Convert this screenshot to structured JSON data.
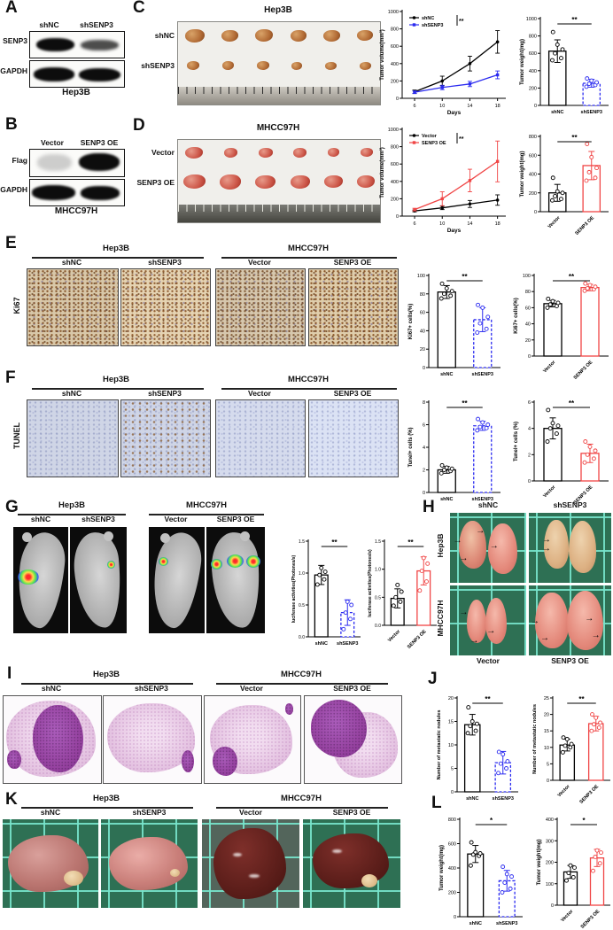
{
  "icons": {
    "arrow_right": "→"
  },
  "figure": {
    "panels": {
      "A": {
        "letter": "A",
        "lanes": [
          "shNC",
          "shSENP3"
        ],
        "blot_labels": [
          "SENP3",
          "GAPDH"
        ],
        "cell_line": "Hep3B"
      },
      "B": {
        "letter": "B",
        "lanes": [
          "Vector",
          "SENP3 OE"
        ],
        "blot_labels": [
          "Flag",
          "GAPDH"
        ],
        "cell_line": "MHCC97H"
      },
      "C": {
        "letter": "C",
        "title": "Hep3B",
        "rows": [
          "shNC",
          "shSENP3"
        ]
      },
      "D": {
        "letter": "D",
        "title": "MHCC97H",
        "rows": [
          "Vector",
          "SENP3 OE"
        ]
      },
      "E": {
        "letter": "E",
        "marker": "Ki67",
        "groups": [
          {
            "cell_line": "Hep3B",
            "conditions": [
              "shNC",
              "shSENP3"
            ]
          },
          {
            "cell_line": "MHCC97H",
            "conditions": [
              "Vector",
              "SENP3 OE"
            ]
          }
        ]
      },
      "F": {
        "letter": "F",
        "marker": "TUNEL",
        "groups": [
          {
            "cell_line": "Hep3B",
            "conditions": [
              "shNC",
              "shSENP3"
            ]
          },
          {
            "cell_line": "MHCC97H",
            "conditions": [
              "Vector",
              "SENP3 OE"
            ]
          }
        ]
      },
      "G": {
        "letter": "G",
        "groups": [
          {
            "cell_line": "Hep3B",
            "conditions": [
              "shNC",
              "shSENP3"
            ]
          },
          {
            "cell_line": "MHCC97H",
            "conditions": [
              "Vector",
              "SENP3 OE"
            ]
          }
        ]
      },
      "H": {
        "letter": "H",
        "col_labels": [
          "shNC",
          "shSENP3"
        ],
        "row_labels": [
          "Hep3B",
          "MHCC97H"
        ],
        "bottom_labels": [
          "Vector",
          "SENP3 OE"
        ]
      },
      "I": {
        "letter": "I",
        "groups": [
          {
            "cell_line": "Hep3B",
            "conditions": [
              "shNC",
              "shSENP3"
            ]
          },
          {
            "cell_line": "MHCC97H",
            "conditions": [
              "Vector",
              "SENP3 OE"
            ]
          }
        ]
      },
      "J": {
        "letter": "J"
      },
      "K": {
        "letter": "K",
        "groups": [
          {
            "cell_line": "Hep3B",
            "conditions": [
              "shNC",
              "shSENP3"
            ]
          },
          {
            "cell_line": "MHCC97H",
            "conditions": [
              "Vector",
              "SENP3 OE"
            ]
          }
        ]
      },
      "L": {
        "letter": "L"
      }
    }
  },
  "chart_data": [
    {
      "id": "C-volume",
      "type": "line",
      "panel": "C",
      "x": [
        6,
        10,
        14,
        18
      ],
      "xlabel": "Days",
      "ylabel": "Tumor volume(mm³)",
      "ylim": [
        0,
        1000
      ],
      "yticks": [
        0,
        200,
        400,
        600,
        800,
        1000
      ],
      "series": [
        {
          "name": "shNC",
          "color": "#000000",
          "values": [
            75,
            200,
            400,
            650
          ],
          "errors": [
            20,
            55,
            85,
            130
          ]
        },
        {
          "name": "shSENP3",
          "color": "#2b2bf0",
          "values": [
            70,
            125,
            165,
            270
          ],
          "errors": [
            15,
            25,
            30,
            45
          ]
        }
      ],
      "sig": "**"
    },
    {
      "id": "C-weight",
      "type": "bar",
      "panel": "C",
      "categories": [
        "shNC",
        "shSENP3"
      ],
      "colors": [
        "#000000",
        "#2b2bf0"
      ],
      "dashed": [
        false,
        true
      ],
      "values": [
        625,
        255
      ],
      "errors": [
        130,
        45
      ],
      "points": [
        [
          520,
          545,
          600,
          645,
          700,
          845
        ],
        [
          215,
          235,
          250,
          265,
          285,
          310
        ]
      ],
      "ylabel": "Tumor weight(mg)",
      "ylim": [
        0,
        1000
      ],
      "yticks": [
        0,
        200,
        400,
        600,
        800,
        1000
      ],
      "sig": "**",
      "rotate_labels": false
    },
    {
      "id": "D-volume",
      "type": "line",
      "panel": "D",
      "x": [
        6,
        10,
        14,
        18
      ],
      "xlabel": "Days",
      "ylabel": "Tumor volume(mm³)",
      "ylim": [
        0,
        1000
      ],
      "yticks": [
        0,
        200,
        400,
        600,
        800,
        1000
      ],
      "series": [
        {
          "name": "Vector",
          "color": "#000000",
          "values": [
            60,
            95,
            140,
            185
          ],
          "errors": [
            10,
            20,
            40,
            60
          ]
        },
        {
          "name": "SENP3 OE",
          "color": "#f04545",
          "values": [
            75,
            200,
            410,
            630
          ],
          "errors": [
            15,
            80,
            130,
            235
          ]
        }
      ],
      "sig": "**"
    },
    {
      "id": "D-weight",
      "type": "bar",
      "panel": "D",
      "categories": [
        "Vector",
        "SENP3 OE"
      ],
      "colors": [
        "#000000",
        "#f04545"
      ],
      "values": [
        200,
        490
      ],
      "errors": [
        90,
        150
      ],
      "points": [
        [
          120,
          135,
          165,
          200,
          215,
          360
        ],
        [
          330,
          360,
          420,
          465,
          580,
          720
        ]
      ],
      "ylabel": "Tumor weight(mg)",
      "ylim": [
        0,
        800
      ],
      "yticks": [
        0,
        200,
        400,
        600,
        800
      ],
      "sig": "**",
      "rotate_labels": true
    },
    {
      "id": "E-hep",
      "type": "bar",
      "panel": "E",
      "categories": [
        "shNC",
        "shSENP3"
      ],
      "colors": [
        "#000000",
        "#2b2bf0"
      ],
      "dashed": [
        false,
        true
      ],
      "values": [
        82,
        52
      ],
      "errors": [
        7,
        13
      ],
      "points": [
        [
          75,
          78,
          80,
          83,
          86,
          91
        ],
        [
          38,
          42,
          48,
          55,
          65,
          68
        ]
      ],
      "ylabel": "Ki67+ cells(%)",
      "ylim": [
        0,
        100
      ],
      "yticks": [
        0,
        20,
        40,
        60,
        80,
        100
      ],
      "sig": "**",
      "rotate_labels": false
    },
    {
      "id": "E-mhcc",
      "type": "bar",
      "panel": "E",
      "categories": [
        "Vector",
        "SENP3 OE"
      ],
      "colors": [
        "#000000",
        "#f04545"
      ],
      "values": [
        65,
        85
      ],
      "errors": [
        4,
        4
      ],
      "points": [
        [
          60,
          62,
          64,
          66,
          68,
          71
        ],
        [
          81,
          83,
          84,
          86,
          88,
          90
        ]
      ],
      "ylabel": "Ki67+ cells(%)",
      "ylim": [
        0,
        100
      ],
      "yticks": [
        0,
        20,
        40,
        60,
        80,
        100
      ],
      "sig": "**",
      "rotate_labels": true
    },
    {
      "id": "F-hep",
      "type": "bar",
      "panel": "F",
      "categories": [
        "shNC",
        "shSENP3"
      ],
      "colors": [
        "#000000",
        "#2b2bf0"
      ],
      "dashed": [
        false,
        true
      ],
      "values": [
        2.0,
        5.9
      ],
      "errors": [
        0.3,
        0.4
      ],
      "points": [
        [
          1.7,
          1.9,
          2.0,
          2.1,
          2.2,
          2.4
        ],
        [
          5.5,
          5.7,
          5.8,
          6.0,
          6.2,
          6.5
        ]
      ],
      "ylabel": "Tunel+ cells (%)",
      "ylim": [
        0,
        8
      ],
      "yticks": [
        0,
        2,
        4,
        6,
        8
      ],
      "sig": "**",
      "rotate_labels": false
    },
    {
      "id": "F-mhcc",
      "type": "bar",
      "panel": "F",
      "categories": [
        "Vector",
        "SENP3 OE"
      ],
      "colors": [
        "#000000",
        "#f04545"
      ],
      "values": [
        4.0,
        2.1
      ],
      "errors": [
        0.8,
        0.7
      ],
      "points": [
        [
          3.0,
          3.6,
          4.0,
          4.2,
          4.4,
          5.4
        ],
        [
          1.4,
          1.7,
          2.0,
          2.3,
          2.6,
          3.0
        ]
      ],
      "ylabel": "Tunel+ cells (%)",
      "ylim": [
        0,
        6
      ],
      "yticks": [
        0,
        2,
        4,
        6
      ],
      "sig": "**",
      "rotate_labels": true
    },
    {
      "id": "G-hep",
      "type": "bar",
      "panel": "G",
      "categories": [
        "shNC",
        "shSENP3"
      ],
      "colors": [
        "#000000",
        "#2b2bf0"
      ],
      "dashed": [
        false,
        true
      ],
      "values": [
        0.97,
        0.38
      ],
      "errors": [
        0.15,
        0.2
      ],
      "points": [
        [
          0.82,
          0.9,
          0.97,
          1.02,
          1.08
        ],
        [
          0.12,
          0.28,
          0.38,
          0.5,
          0.55
        ]
      ],
      "ylabel": "luciferase activities(Photones/s)",
      "ylim": [
        0,
        1.5
      ],
      "yticks": [
        0,
        0.5,
        1,
        1.5
      ],
      "tick_decimals": 1,
      "ylabel_size": 5,
      "mleft": 22,
      "tick_size": 5,
      "sig": "**",
      "rotate_labels": false
    },
    {
      "id": "G-mhcc",
      "type": "bar",
      "panel": "G",
      "categories": [
        "Vector",
        "SENP3 OE"
      ],
      "colors": [
        "#000000",
        "#f04545"
      ],
      "values": [
        0.48,
        0.97
      ],
      "errors": [
        0.17,
        0.25
      ],
      "points": [
        [
          0.35,
          0.42,
          0.5,
          0.6,
          0.72
        ],
        [
          0.62,
          0.78,
          0.97,
          1.1,
          1.2
        ]
      ],
      "ylabel": "luciferase activities(Photones/s)",
      "ylim": [
        0,
        1.5
      ],
      "yticks": [
        0,
        0.5,
        1,
        1.5
      ],
      "tick_decimals": 1,
      "ylabel_size": 5,
      "mleft": 22,
      "tick_size": 5,
      "sig": "**",
      "rotate_labels": true
    },
    {
      "id": "J-hep",
      "type": "bar",
      "panel": "J",
      "categories": [
        "shNC",
        "shSENP3"
      ],
      "colors": [
        "#000000",
        "#2b2bf0"
      ],
      "dashed": [
        false,
        true
      ],
      "values": [
        14.3,
        6.2
      ],
      "errors": [
        2.2,
        2.4
      ],
      "points": [
        [
          12.5,
          13,
          14,
          14.5,
          15,
          18
        ],
        [
          4,
          5,
          6,
          6.5,
          8,
          8.5
        ]
      ],
      "ylabel": "Number of metastatic nodules",
      "ylim": [
        0,
        20
      ],
      "yticks": [
        0,
        5,
        10,
        15,
        20
      ],
      "ylabel_size": 5.5,
      "sig": "**",
      "rotate_labels": false
    },
    {
      "id": "J-mhcc",
      "type": "bar",
      "panel": "J",
      "categories": [
        "Vector",
        "SENP3 OE"
      ],
      "colors": [
        "#000000",
        "#f04545"
      ],
      "values": [
        10.7,
        17.2
      ],
      "errors": [
        1.8,
        2.2
      ],
      "points": [
        [
          8.5,
          10,
          10.5,
          11,
          12.5,
          13
        ],
        [
          15,
          16,
          17,
          17.5,
          19,
          20
        ]
      ],
      "ylabel": "Number of metastatic nodules",
      "ylim": [
        0,
        25
      ],
      "yticks": [
        0,
        5,
        10,
        15,
        20,
        25
      ],
      "ylabel_size": 5.5,
      "sig": "**",
      "rotate_labels": true
    },
    {
      "id": "L-hep",
      "type": "bar",
      "panel": "L",
      "categories": [
        "shNC",
        "shSENP3"
      ],
      "colors": [
        "#000000",
        "#2b2bf0"
      ],
      "dashed": [
        false,
        true
      ],
      "values": [
        515,
        295
      ],
      "errors": [
        70,
        85
      ],
      "points": [
        [
          420,
          500,
          510,
          520,
          530,
          610
        ],
        [
          200,
          230,
          280,
          330,
          350,
          410
        ]
      ],
      "ylabel": "Tumor weight(mg)",
      "ylim": [
        0,
        800
      ],
      "yticks": [
        0,
        200,
        400,
        600,
        800
      ],
      "sig": "*",
      "rotate_labels": false
    },
    {
      "id": "L-mhcc",
      "type": "bar",
      "panel": "L",
      "categories": [
        "Vector",
        "SENP3 OE"
      ],
      "colors": [
        "#000000",
        "#f04545"
      ],
      "values": [
        155,
        220
      ],
      "errors": [
        30,
        40
      ],
      "points": [
        [
          115,
          130,
          150,
          175,
          185
        ],
        [
          160,
          195,
          225,
          245,
          255
        ]
      ],
      "ylabel": "Tumor weight(mg)",
      "ylim": [
        0,
        400
      ],
      "yticks": [
        0,
        100,
        200,
        300,
        400
      ],
      "sig": "*",
      "rotate_labels": true
    }
  ]
}
